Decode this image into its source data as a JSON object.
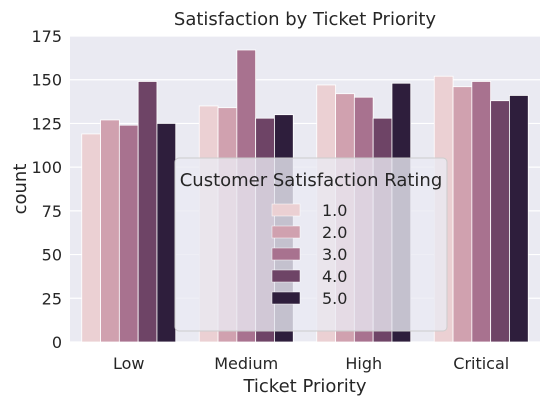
{
  "chart_data": {
    "type": "bar",
    "title": "Satisfaction by Ticket Priority",
    "xlabel": "Ticket Priority",
    "ylabel": "count",
    "categories": [
      "Low",
      "Medium",
      "High",
      "Critical"
    ],
    "ylim": [
      0,
      175
    ],
    "yticks": [
      0,
      25,
      50,
      75,
      100,
      125,
      150,
      175
    ],
    "grid": true,
    "legend": {
      "title": "Customer Satisfaction Rating",
      "placement": "lower-center"
    },
    "series": [
      {
        "name": "1.0",
        "color": "#ebd0d3",
        "values": [
          119,
          135,
          147,
          152
        ]
      },
      {
        "name": "2.0",
        "color": "#d0a1af",
        "values": [
          127,
          134,
          142,
          146
        ]
      },
      {
        "name": "3.0",
        "color": "#a8728f",
        "values": [
          124,
          167,
          140,
          149
        ]
      },
      {
        "name": "4.0",
        "color": "#6e4466",
        "values": [
          149,
          128,
          128,
          138
        ]
      },
      {
        "name": "5.0",
        "color": "#2e1e3c",
        "values": [
          125,
          130,
          148,
          141
        ]
      }
    ],
    "background": "#eaeaf2",
    "grid_color": "#ffffff"
  }
}
